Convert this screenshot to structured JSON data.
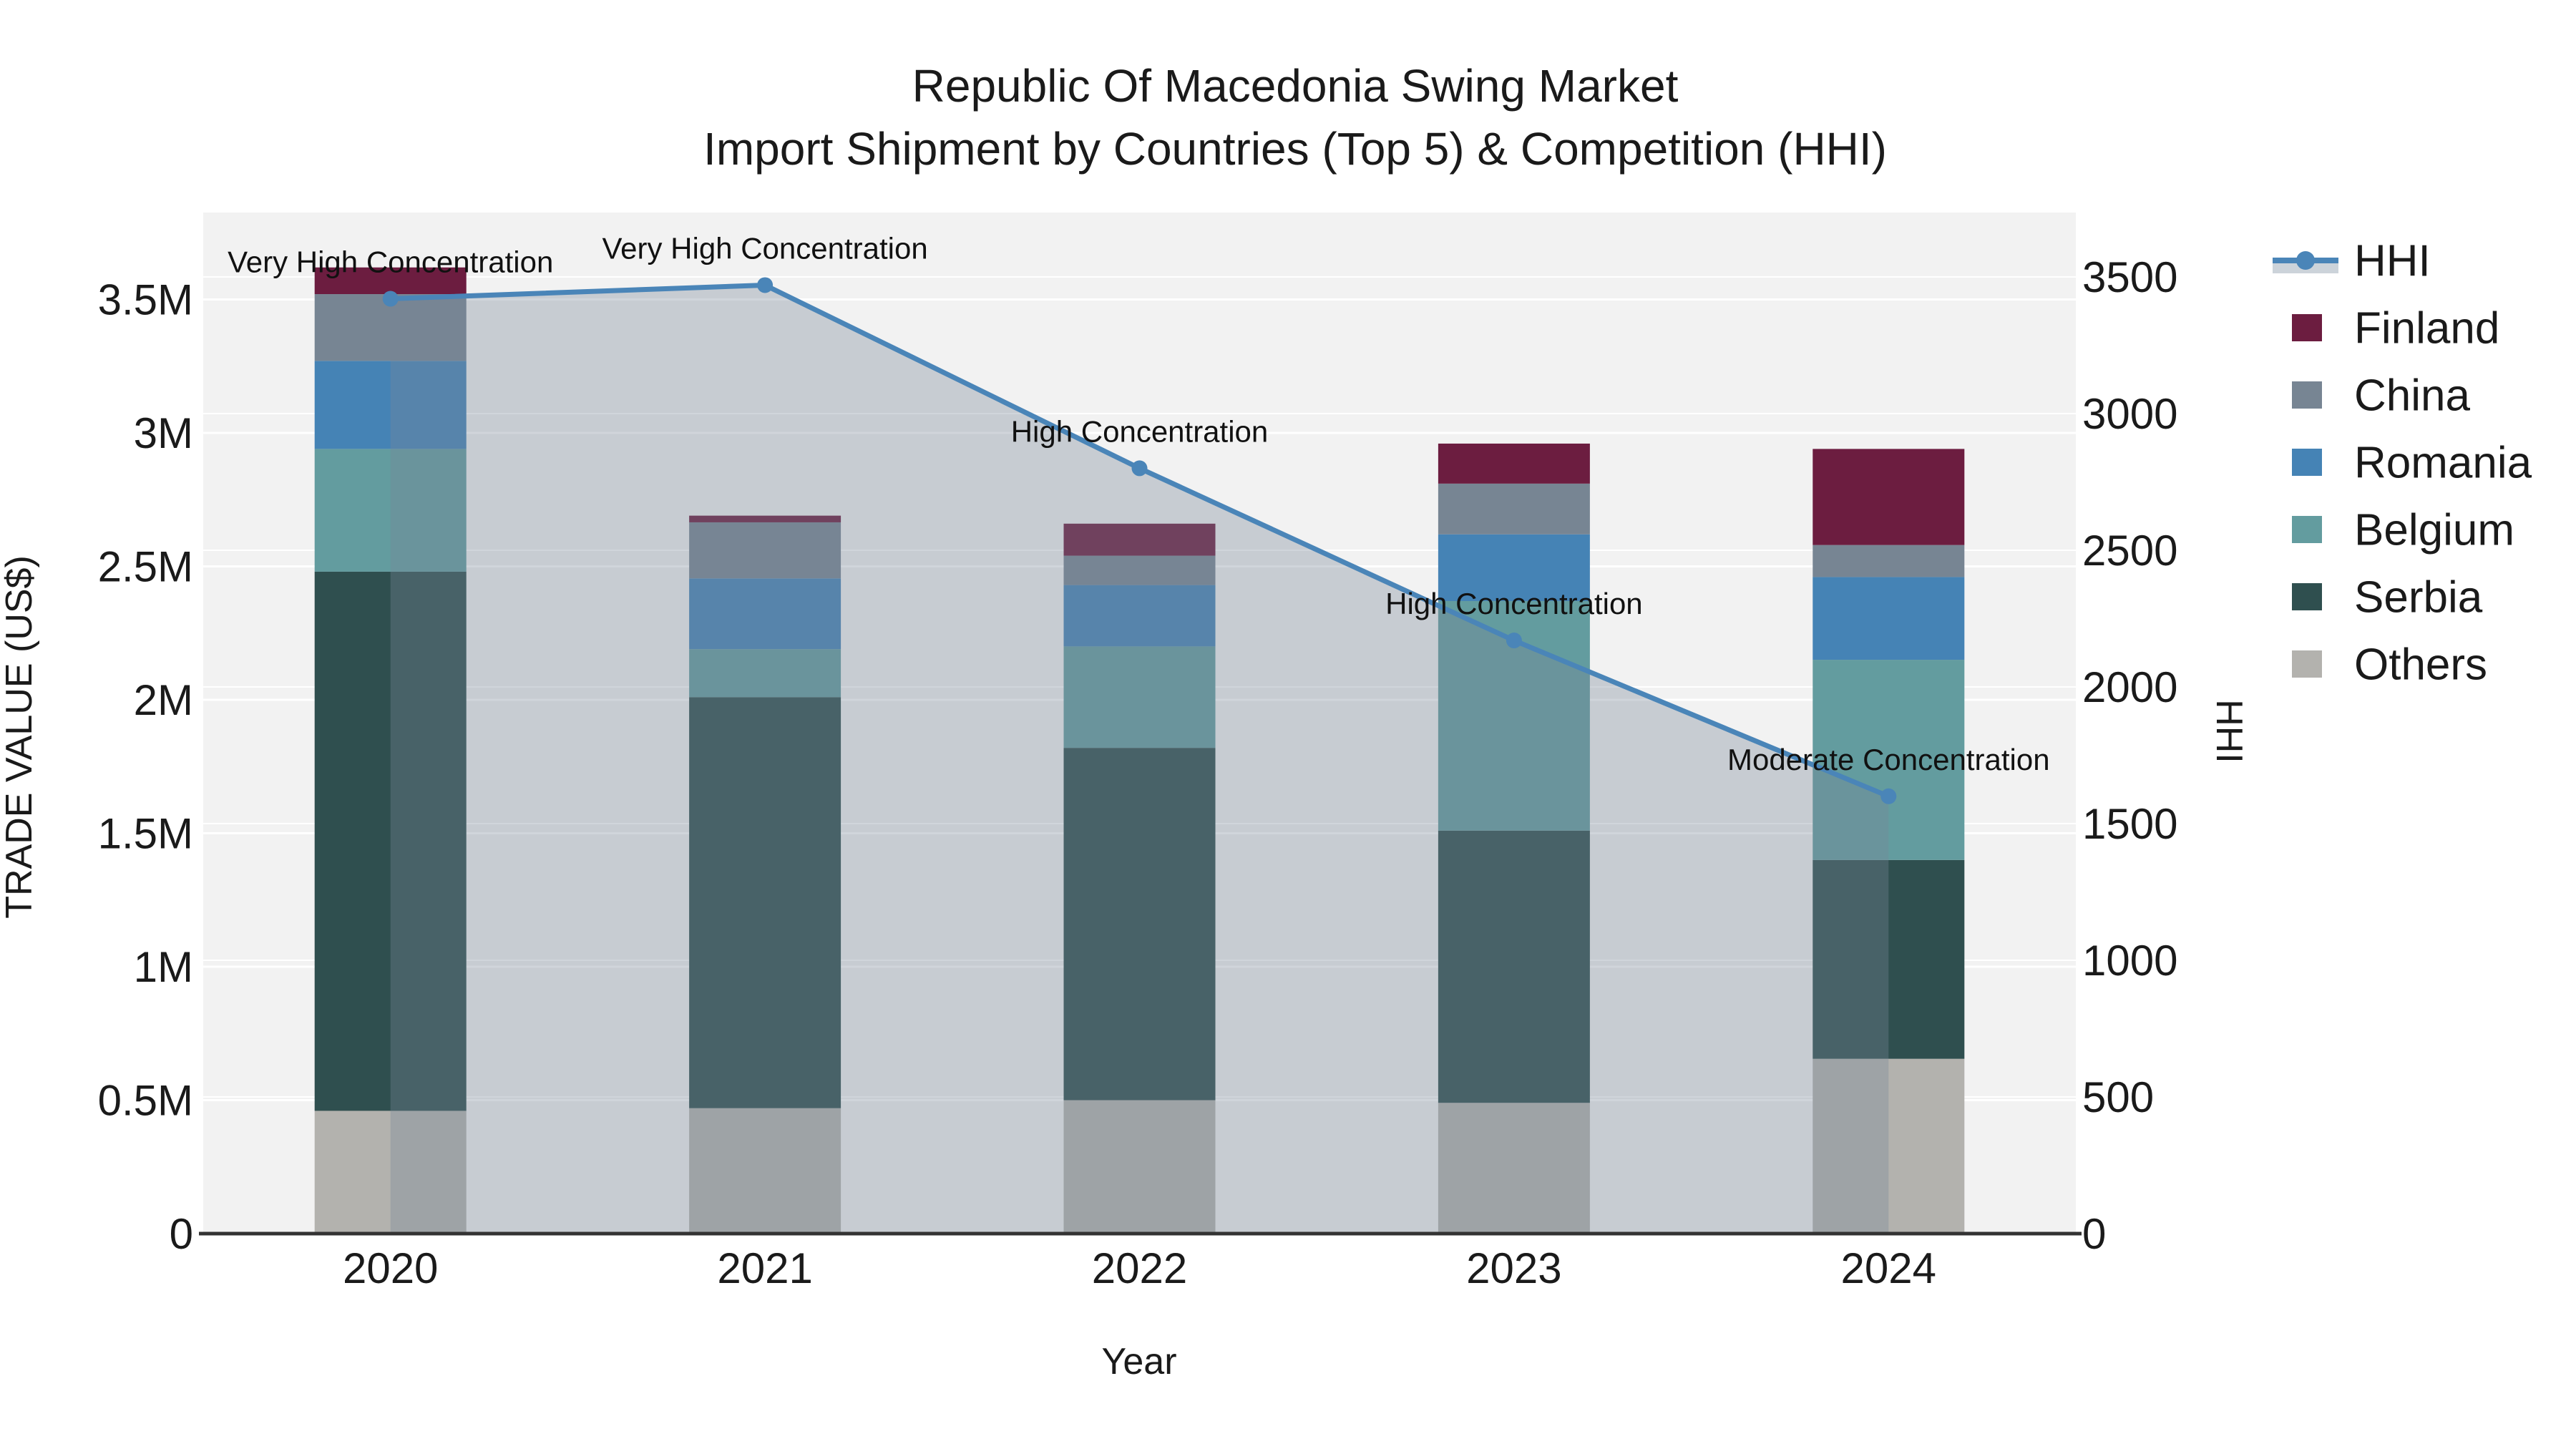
{
  "title": {
    "line1": "Republic Of Macedonia Swing Market",
    "line2": "Import Shipment by Countries (Top 5) & Competition (HHI)"
  },
  "colors": {
    "figure_bg": "#ffffff",
    "plot_bg": "#f2f2f2",
    "gridline": "#ffffff",
    "axis_line": "#333333",
    "text": "#1a1a1a",
    "hhi_line": "#4a85b8",
    "hhi_area_fill": "rgba(119,136,153,0.35)",
    "legend_hhi_band": "#ccd3da"
  },
  "chart_data": {
    "type": "bar",
    "stacked": true,
    "categories": [
      "2020",
      "2021",
      "2022",
      "2023",
      "2024"
    ],
    "xlabel": "Year",
    "left_axis": {
      "label": "TRADE VALUE (US$)",
      "range": [
        0,
        3830000
      ],
      "ticks": [
        {
          "value": 0,
          "label": "0"
        },
        {
          "value": 500000,
          "label": "0.5M"
        },
        {
          "value": 1000000,
          "label": "1M"
        },
        {
          "value": 1500000,
          "label": "1.5M"
        },
        {
          "value": 2000000,
          "label": "2M"
        },
        {
          "value": 2500000,
          "label": "2.5M"
        },
        {
          "value": 3000000,
          "label": "3M"
        },
        {
          "value": 3500000,
          "label": "3.5M"
        }
      ]
    },
    "right_axis": {
      "label": "HHI",
      "range": [
        0,
        3735
      ],
      "ticks": [
        {
          "value": 0,
          "label": "0"
        },
        {
          "value": 500,
          "label": "500"
        },
        {
          "value": 1000,
          "label": "1000"
        },
        {
          "value": 1500,
          "label": "1500"
        },
        {
          "value": 2000,
          "label": "2000"
        },
        {
          "value": 2500,
          "label": "2500"
        },
        {
          "value": 3000,
          "label": "3000"
        },
        {
          "value": 3500,
          "label": "3500"
        }
      ]
    },
    "bar_series": [
      {
        "name": "Others",
        "color": "#b3b2ae",
        "values": [
          460000,
          470000,
          500000,
          490000,
          655000
        ]
      },
      {
        "name": "Serbia",
        "color": "#2f4f4f",
        "values": [
          2020000,
          1540000,
          1320000,
          1020000,
          745000
        ]
      },
      {
        "name": "Belgium",
        "color": "#639c9f",
        "values": [
          460000,
          180000,
          380000,
          860000,
          750000
        ]
      },
      {
        "name": "Romania",
        "color": "#4583b5",
        "values": [
          330000,
          265000,
          230000,
          250000,
          310000
        ]
      },
      {
        "name": "China",
        "color": "#778593",
        "values": [
          250000,
          210000,
          110000,
          190000,
          120000
        ]
      },
      {
        "name": "Finland",
        "color": "#6c1d40",
        "values": [
          100000,
          25000,
          120000,
          150000,
          360000
        ]
      }
    ],
    "line_series": {
      "name": "HHI",
      "color": "#4a85b8",
      "values": [
        3420,
        3470,
        2800,
        2170,
        1600
      ]
    },
    "annotations": [
      {
        "x": "2020",
        "text": "Very High Concentration"
      },
      {
        "x": "2021",
        "text": "Very High Concentration"
      },
      {
        "x": "2022",
        "text": "High Concentration"
      },
      {
        "x": "2023",
        "text": "High Concentration"
      },
      {
        "x": "2024",
        "text": "Moderate Concentration"
      }
    ],
    "legend_position": "top-right",
    "grid": true
  },
  "legend": {
    "items": [
      {
        "id": "hhi",
        "label": "HHI",
        "type": "line",
        "color": "#4a85b8"
      },
      {
        "id": "finland",
        "label": "Finland",
        "type": "swatch",
        "color": "#6c1d40"
      },
      {
        "id": "china",
        "label": "China",
        "type": "swatch",
        "color": "#778593"
      },
      {
        "id": "romania",
        "label": "Romania",
        "type": "swatch",
        "color": "#4583b5"
      },
      {
        "id": "belgium",
        "label": "Belgium",
        "type": "swatch",
        "color": "#639c9f"
      },
      {
        "id": "serbia",
        "label": "Serbia",
        "type": "swatch",
        "color": "#2f4f4f"
      },
      {
        "id": "others",
        "label": "Others",
        "type": "swatch",
        "color": "#b3b2ae"
      }
    ]
  }
}
